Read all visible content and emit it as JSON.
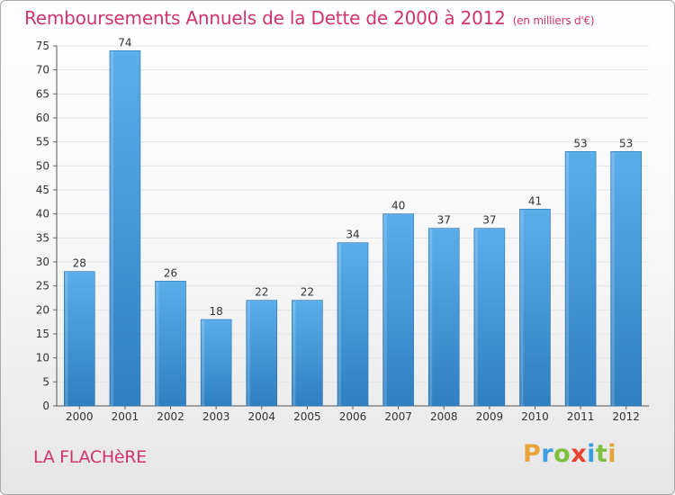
{
  "header": {
    "title": "Remboursements Annuels de la Dette de 2000 à 2012",
    "subtitle": "(en milliers d'€)"
  },
  "footer": {
    "commune": "LA FLACHèRE",
    "logo": {
      "letters": [
        "P",
        "r",
        "o",
        "x",
        "i",
        "t",
        "i"
      ],
      "colors": [
        "#e8a33a",
        "#3a9ee0",
        "#7fbf3f",
        "#e8432f",
        "#3a9ee0",
        "#7fbf3f",
        "#e8a33a"
      ]
    }
  },
  "colors": {
    "bar_light": "#5aaeea",
    "bar_dark": "#2f7fc1",
    "title": "#d0336e",
    "grid": "#e4e4e4"
  },
  "chart_data": {
    "type": "bar",
    "title": "Remboursements Annuels de la Dette de 2000 à 2012",
    "xlabel": "",
    "ylabel": "",
    "categories": [
      "2000",
      "2001",
      "2002",
      "2003",
      "2004",
      "2005",
      "2006",
      "2007",
      "2008",
      "2009",
      "2010",
      "2011",
      "2012"
    ],
    "values": [
      28,
      74,
      26,
      18,
      22,
      22,
      34,
      40,
      37,
      37,
      41,
      53,
      53
    ],
    "ylim": [
      0,
      75
    ],
    "yticks": [
      0,
      5,
      10,
      15,
      20,
      25,
      30,
      35,
      40,
      45,
      50,
      55,
      60,
      65,
      70,
      75
    ],
    "grid": true,
    "data_labels": true
  }
}
